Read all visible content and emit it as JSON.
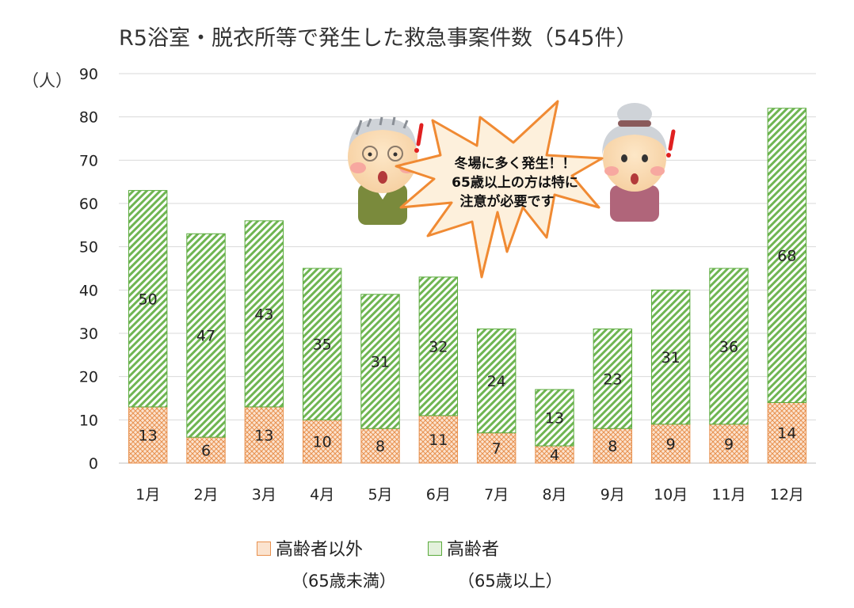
{
  "chart_data": {
    "type": "bar",
    "stacked": true,
    "title": "R5浴室・脱衣所等で発生した救急事案件数（545件）",
    "ylabel": "（人）",
    "ylim": [
      0,
      90
    ],
    "yticks": [
      0,
      10,
      20,
      30,
      40,
      50,
      60,
      70,
      80,
      90
    ],
    "grid": true,
    "legend_position": "bottom",
    "categories": [
      "1月",
      "2月",
      "3月",
      "4月",
      "5月",
      "6月",
      "7月",
      "8月",
      "9月",
      "10月",
      "11月",
      "12月"
    ],
    "series": [
      {
        "name": "高齢者以外",
        "note": "（65歳未満）",
        "color": "#e8914f",
        "values": [
          13,
          6,
          13,
          10,
          8,
          11,
          7,
          4,
          8,
          9,
          9,
          14
        ]
      },
      {
        "name": "高齢者",
        "note": "（65歳以上）",
        "color": "#5aab3c",
        "values": [
          50,
          47,
          43,
          35,
          31,
          32,
          24,
          13,
          23,
          31,
          36,
          68
        ]
      }
    ]
  },
  "callout": {
    "lines": [
      "冬場に多く発生！！",
      "65歳以上の方は特に",
      "注意が必要です"
    ]
  }
}
